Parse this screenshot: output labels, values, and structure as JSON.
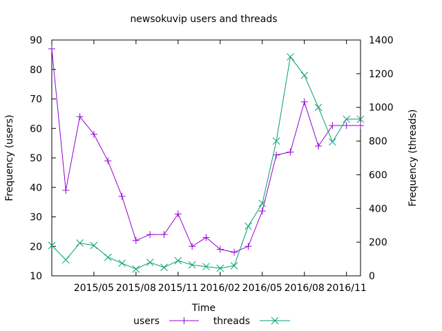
{
  "chart_data": {
    "type": "line",
    "title": "newsokuvip users and threads",
    "xlabel": "Time",
    "ylabel": "Frequency (users)",
    "y2label": "Frequency (threads)",
    "x": [
      "2015-02",
      "2015-03",
      "2015-04",
      "2015-05",
      "2015-06",
      "2015-07",
      "2015-08",
      "2015-09",
      "2015-10",
      "2015-11",
      "2015-12",
      "2016-01",
      "2016-02",
      "2016-03",
      "2016-04",
      "2016-05",
      "2016-06",
      "2016-07",
      "2016-08",
      "2016-09",
      "2016-10",
      "2016-11",
      "2016-12"
    ],
    "xticks": [
      "2015/05",
      "2015/08",
      "2015/11",
      "2016/02",
      "2016/05",
      "2016/08",
      "2016/11"
    ],
    "ylim": [
      10,
      90
    ],
    "yticks": [
      10,
      20,
      30,
      40,
      50,
      60,
      70,
      80,
      90
    ],
    "y2lim": [
      0,
      1400
    ],
    "y2ticks": [
      0,
      200,
      400,
      600,
      800,
      1000,
      1200,
      1400
    ],
    "grid": false,
    "legend_position": "bottom",
    "series": [
      {
        "name": "users",
        "axis": "left",
        "color": "#9400d3",
        "marker": "plus",
        "values": [
          87,
          39,
          64,
          58,
          49,
          37,
          22,
          24,
          24,
          31,
          20,
          23,
          19,
          18,
          20,
          32,
          51,
          52,
          69,
          54,
          61,
          61,
          61
        ]
      },
      {
        "name": "threads",
        "axis": "right",
        "color": "#009e73",
        "marker": "cross",
        "values": [
          180,
          95,
          195,
          180,
          110,
          75,
          40,
          80,
          50,
          90,
          65,
          55,
          45,
          60,
          295,
          430,
          800,
          1300,
          1190,
          1000,
          795,
          930,
          930
        ]
      }
    ]
  }
}
